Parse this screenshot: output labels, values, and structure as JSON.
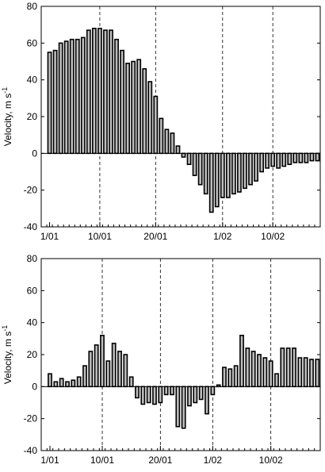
{
  "chart_data": [
    {
      "type": "bar",
      "ylabel": "Velocity, m s",
      "ylabel_superscript": "-1",
      "ylim": [
        -40,
        80
      ],
      "yticks": [
        -40,
        -20,
        0,
        20,
        40,
        60,
        80
      ],
      "xtick_labels": [
        "1/01",
        "10/01",
        "20/01",
        "1/02",
        "10/02"
      ],
      "xtick_positions": [
        1,
        10,
        20,
        32,
        41
      ],
      "grid_lines_at": [
        10,
        20,
        32,
        41
      ],
      "x": [
        1,
        2,
        3,
        4,
        5,
        6,
        7,
        8,
        9,
        10,
        11,
        12,
        13,
        14,
        15,
        16,
        17,
        18,
        19,
        20,
        21,
        22,
        23,
        24,
        25,
        26,
        27,
        28,
        29,
        30,
        31,
        32,
        33,
        34,
        35,
        36,
        37,
        38,
        39,
        40,
        41,
        42,
        43,
        44,
        45,
        46,
        47,
        48,
        49
      ],
      "values": [
        55,
        56,
        60,
        61,
        62,
        62,
        63,
        67,
        68,
        68,
        67,
        67,
        62,
        56,
        49,
        50,
        51,
        46,
        39,
        31,
        19,
        13,
        11,
        4,
        -2,
        -6,
        -12,
        -17,
        -22,
        -32,
        -29,
        -24,
        -24,
        -22,
        -21,
        -19,
        -17,
        -15,
        -10,
        -8,
        -7,
        -8,
        -7,
        -6,
        -5,
        -5,
        -5,
        -4,
        -4
      ]
    },
    {
      "type": "bar",
      "ylabel": "Velocity, m s",
      "ylabel_superscript": "-1",
      "ylim": [
        -40,
        80
      ],
      "yticks": [
        -40,
        -20,
        0,
        20,
        40,
        60,
        80
      ],
      "xtick_labels": [
        "1/01",
        "10/01",
        "20/01",
        "1/02",
        "10/02"
      ],
      "xtick_positions": [
        1,
        10,
        20,
        29,
        39
      ],
      "grid_lines_at": [
        10,
        20,
        29,
        39
      ],
      "x": [
        1,
        2,
        3,
        4,
        5,
        6,
        7,
        8,
        9,
        10,
        11,
        12,
        13,
        14,
        15,
        16,
        17,
        18,
        19,
        20,
        21,
        22,
        23,
        24,
        25,
        26,
        27,
        28,
        29,
        30,
        31,
        32,
        33,
        34,
        35,
        36,
        37,
        38,
        39,
        40,
        41,
        42,
        43,
        44,
        45,
        46,
        47
      ],
      "values": [
        8,
        3,
        5,
        3,
        4,
        6,
        13,
        22,
        26,
        32,
        16,
        27,
        22,
        20,
        6,
        -7,
        -11,
        -10,
        -11,
        -10,
        -5,
        -5,
        -25,
        -26,
        -12,
        -10,
        -8,
        -17,
        -5,
        1,
        12,
        11,
        13,
        32,
        24,
        22,
        20,
        18,
        16,
        8,
        24,
        24,
        24,
        18,
        18,
        17,
        17
      ]
    }
  ]
}
